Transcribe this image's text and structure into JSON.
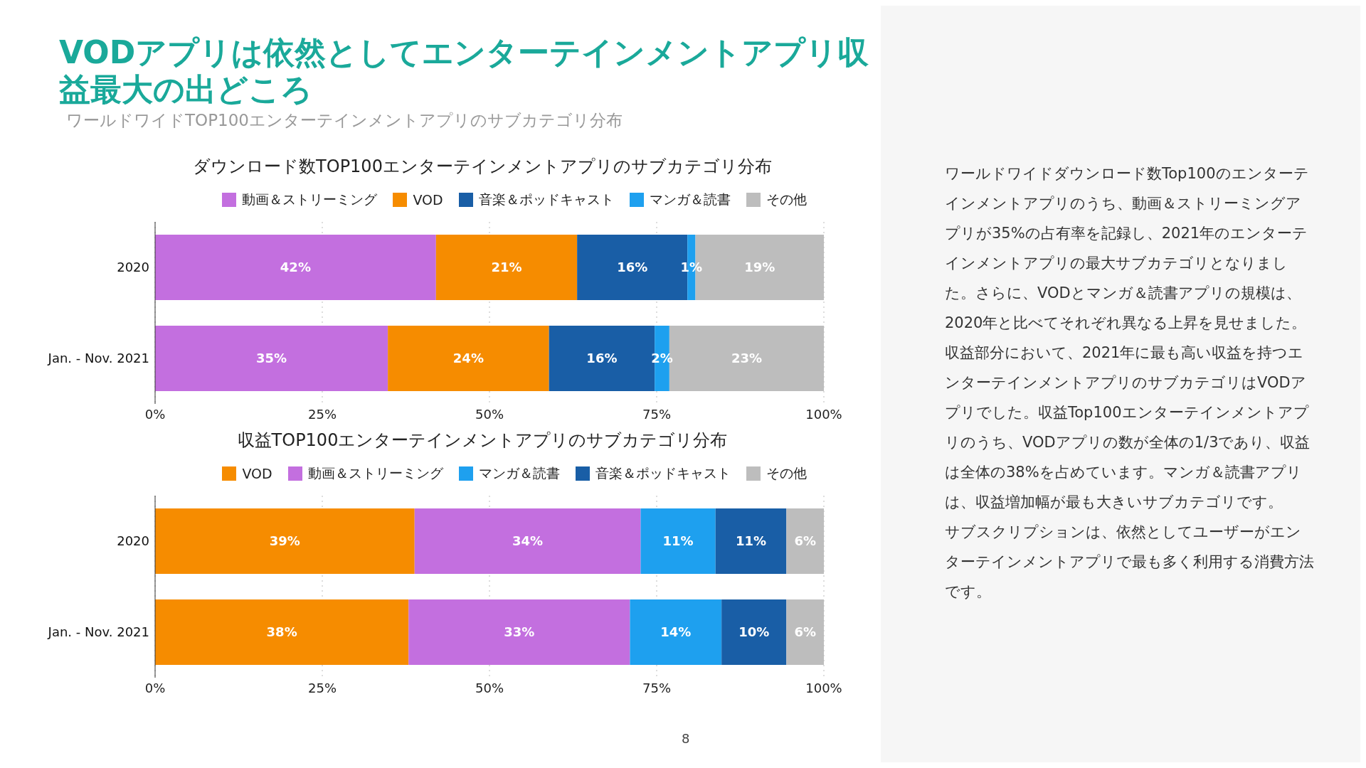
{
  "chart_data": [
    {
      "type": "bar",
      "orientation": "horizontal",
      "stacked": true,
      "title": "ダウンロード数TOP100エンターテインメントアプリのサブカテゴリ分布",
      "categories": [
        "2020",
        "Jan. - Nov. 2021"
      ],
      "legend": "top",
      "grid": "x",
      "xlim": [
        0,
        100
      ],
      "xticks": [
        {
          "value": 0,
          "label": "0%"
        },
        {
          "value": 25,
          "label": "25%"
        },
        {
          "value": 50,
          "label": "50%"
        },
        {
          "value": 75,
          "label": "75%"
        },
        {
          "value": 100,
          "label": "100%"
        }
      ],
      "series": [
        {
          "name": "動画＆ストリーミング",
          "color": "#c36fdf",
          "values": [
            42,
            34.8
          ],
          "value_labels": [
            "42%",
            "35%"
          ]
        },
        {
          "name": "VOD",
          "color": "#f68c00",
          "values": [
            21.1,
            24.1
          ],
          "value_labels": [
            "21%",
            "24%"
          ]
        },
        {
          "name": "音楽＆ポッドキャスト",
          "color": "#195ea6",
          "values": [
            16.5,
            15.8
          ],
          "value_labels": [
            "16%",
            "16%"
          ]
        },
        {
          "name": "マンガ＆読書",
          "color": "#1ea0ef",
          "values": [
            1.2,
            2.2
          ],
          "value_labels": [
            "1%",
            "2%"
          ]
        },
        {
          "name": "その他",
          "color": "#bdbdbd",
          "values": [
            19.2,
            23.1
          ],
          "value_labels": [
            "19%",
            "23%"
          ]
        }
      ]
    },
    {
      "type": "bar",
      "orientation": "horizontal",
      "stacked": true,
      "title": "収益TOP100エンターテインメントアプリのサブカテゴリ分布",
      "categories": [
        "2020",
        "Jan. - Nov. 2021"
      ],
      "legend": "top",
      "grid": "x",
      "xlim": [
        0,
        100
      ],
      "xticks": [
        {
          "value": 0,
          "label": "0%"
        },
        {
          "value": 25,
          "label": "25%"
        },
        {
          "value": 50,
          "label": "50%"
        },
        {
          "value": 75,
          "label": "75%"
        },
        {
          "value": 100,
          "label": "100%"
        }
      ],
      "series": [
        {
          "name": "VOD",
          "color": "#f68c00",
          "values": [
            38.8,
            37.9
          ],
          "value_labels": [
            "39%",
            "38%"
          ]
        },
        {
          "name": "動画＆ストリーミング",
          "color": "#c36fdf",
          "values": [
            33.8,
            33.1
          ],
          "value_labels": [
            "34%",
            "33%"
          ]
        },
        {
          "name": "マンガ＆読書",
          "color": "#1ea0ef",
          "values": [
            11.2,
            13.7
          ],
          "value_labels": [
            "11%",
            "14%"
          ]
        },
        {
          "name": "音楽＆ポッドキャスト",
          "color": "#195ea6",
          "values": [
            10.6,
            9.7
          ],
          "value_labels": [
            "11%",
            "10%"
          ]
        },
        {
          "name": "その他",
          "color": "#bdbdbd",
          "values": [
            5.6,
            5.6
          ],
          "value_labels": [
            "6%",
            "6%"
          ]
        }
      ]
    },
    {
      "type": "other",
      "title": "VODアプリは依然としてエンターテインメントアプリ収益最大の出どころ",
      "subtitle": "ワールドワイドTOP100エンターテインメントアプリのサブカテゴリ分布",
      "annotations": [
        "ワールドワイドダウンロード数Top100のエンターテインメントアプリのうち、動画＆ストリーミングアプリが35%の占有率を記録し、2021年のエンターテインメントアプリの最大サブカテゴリとなりました。さらに、VODとマンガ＆読書アプリの規模は、2020年と比べてそれぞれ異なる上昇を見せました。",
        "収益部分において、2021年に最も高い収益を持つエンターテインメントアプリのサブカテゴリはVODアプリでした。収益Top100エンターテインメントアプリのうち、VODアプリの数が全体の1/3であり、収益は全体の38%を占めています。マンガ＆読書アプリは、収益増加幅が最も大きいサブカテゴリです。",
        "サブスクリプションは、依然としてユーザーがエンターテインメントアプリで最も多く利用する消費方法です。",
        "8"
      ]
    }
  ]
}
